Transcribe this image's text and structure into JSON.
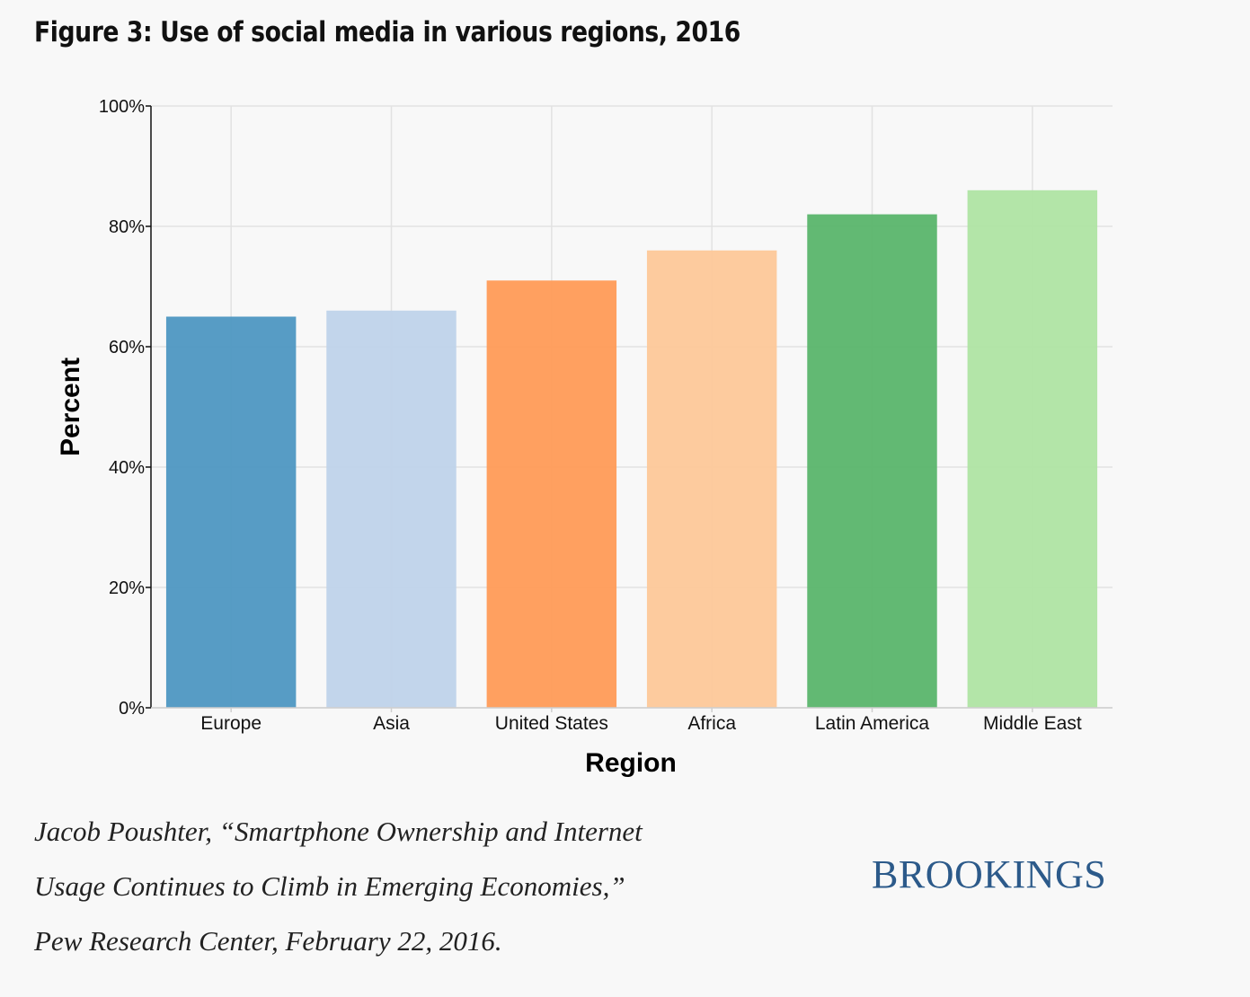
{
  "figure": {
    "title": "Figure 3: Use of social media in various regions, 2016"
  },
  "chart_data": {
    "type": "bar",
    "categories": [
      "Europe",
      "Asia",
      "United States",
      "Africa",
      "Latin America",
      "Middle East"
    ],
    "values": [
      65,
      66,
      71,
      76,
      82,
      86
    ],
    "colors": [
      "#4e97c2",
      "#bfd3ea",
      "#ff9b57",
      "#fdc899",
      "#5ab56b",
      "#afe4a3"
    ],
    "xlabel": "Region",
    "ylabel": "Percent",
    "ylim": [
      0,
      100
    ],
    "yticks": [
      "0%",
      "20%",
      "40%",
      "60%",
      "80%",
      "100%"
    ],
    "ytick_values": [
      0,
      20,
      40,
      60,
      80,
      100
    ],
    "grid": true,
    "legend": "none"
  },
  "citation": {
    "line1": "Jacob Poushter, “Smartphone Ownership and Internet",
    "line2": "Usage Continues to Climb in Emerging Economies,”",
    "line3": "Pew Research Center, February 22, 2016."
  },
  "logo": {
    "text": "BROOKINGS",
    "color": "#2c5a8a"
  }
}
